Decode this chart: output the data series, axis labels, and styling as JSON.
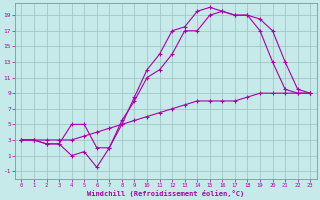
{
  "background_color": "#c6eaea",
  "grid_color": "#9bbfbf",
  "line_color": "#aa00aa",
  "xlabel": "Windchill (Refroidissement éolien,°C)",
  "xlim": [
    -0.5,
    23.5
  ],
  "ylim": [
    -2,
    20.5
  ],
  "xticks": [
    0,
    1,
    2,
    3,
    4,
    5,
    6,
    7,
    8,
    9,
    10,
    11,
    12,
    13,
    14,
    15,
    16,
    17,
    18,
    19,
    20,
    21,
    22,
    23
  ],
  "yticks": [
    -1,
    1,
    3,
    5,
    7,
    9,
    11,
    13,
    15,
    17,
    19
  ],
  "line1_x": [
    0,
    1,
    2,
    3,
    4,
    5,
    6,
    7,
    8,
    9,
    10,
    11,
    12,
    13,
    14,
    15,
    16,
    17,
    18,
    19,
    20,
    21,
    22,
    23
  ],
  "line1_y": [
    3,
    3,
    3,
    3,
    3,
    3.5,
    4,
    4.5,
    5,
    5.5,
    6,
    6.5,
    7,
    7.5,
    8,
    8,
    8,
    8,
    8.5,
    9,
    9,
    9,
    9,
    9
  ],
  "line2_x": [
    0,
    1,
    2,
    3,
    4,
    5,
    6,
    7,
    8,
    9,
    10,
    11,
    12,
    13,
    14,
    15,
    16,
    17,
    18,
    19,
    20,
    21,
    22,
    23
  ],
  "line2_y": [
    3,
    3,
    2.5,
    2.5,
    1,
    1.5,
    -0.5,
    2,
    5.5,
    8,
    11,
    12,
    14,
    17,
    17,
    19,
    19.5,
    19,
    19,
    17,
    13,
    9.5,
    9,
    9
  ],
  "line3_x": [
    0,
    1,
    2,
    3,
    4,
    5,
    6,
    7,
    8,
    9,
    10,
    11,
    12,
    13,
    14,
    15,
    16,
    17,
    18,
    19,
    20,
    21,
    22,
    23
  ],
  "line3_y": [
    3,
    3,
    2.5,
    2.5,
    5,
    5,
    2,
    2,
    5,
    8.5,
    12,
    14,
    17,
    17.5,
    19.5,
    20,
    19.5,
    19,
    19,
    18.5,
    17,
    13,
    9.5,
    9
  ]
}
